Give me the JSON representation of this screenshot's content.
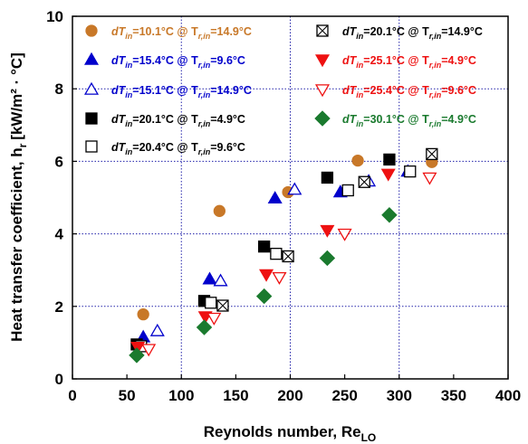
{
  "chart_data": {
    "type": "scatter",
    "xlabel": "Reynolds number, Re",
    "xlabel_sub": "LO",
    "ylabel": "Heat transfer coefficient, h",
    "ylabel_sub": "r",
    "ylabel_unit": "[kW/m² · °C]",
    "xlim": [
      0,
      400
    ],
    "ylim": [
      0,
      10
    ],
    "xticks": [
      0,
      50,
      100,
      150,
      200,
      250,
      300,
      350,
      400
    ],
    "yticks": [
      0,
      2,
      4,
      6,
      8,
      10
    ],
    "grid": true,
    "legend_position": "top (two columns inside plot)",
    "series": [
      {
        "name": "dT_in=10.1°C @ T_r,in=14.9°C",
        "legend_parts": [
          "dT",
          "in",
          "=10.1°C @ T",
          "r,in",
          "=14.9°C"
        ],
        "marker": "circle",
        "color": "#c87828",
        "filled": true,
        "points": [
          [
            65,
            1.78
          ],
          [
            135,
            4.63
          ],
          [
            198,
            5.15
          ],
          [
            262,
            6.02
          ],
          [
            330,
            5.98
          ]
        ]
      },
      {
        "name": "dT_in=15.4°C @ T_r,in=9.6°C",
        "legend_parts": [
          "dT",
          "in",
          "=15.4°C @ T",
          "r,in",
          "=9.6°C"
        ],
        "marker": "triangle-up",
        "color": "#0000cc",
        "filled": true,
        "points": [
          [
            65,
            1.15
          ],
          [
            126,
            2.75
          ],
          [
            186,
            4.98
          ],
          [
            246,
            5.15
          ],
          [
            308,
            5.72
          ]
        ]
      },
      {
        "name": "dT_in=15.1°C @ T_r,in=14.9°C",
        "legend_parts": [
          "dT",
          "in",
          "=15.1°C @ T",
          "r,in",
          "=14.9°C"
        ],
        "marker": "triangle-up",
        "color": "#0000cc",
        "filled": false,
        "points": [
          [
            78,
            1.32
          ],
          [
            136,
            2.7
          ],
          [
            204,
            5.22
          ],
          [
            272,
            5.45
          ]
        ]
      },
      {
        "name": "dT_in=20.1°C @ T_r,in=4.9°C",
        "legend_parts": [
          "dT",
          "in",
          "=20.1°C @ T",
          "r,in",
          "=4.9°C"
        ],
        "marker": "square",
        "color": "#000000",
        "filled": true,
        "points": [
          [
            59,
            0.95
          ],
          [
            121,
            2.15
          ],
          [
            176,
            3.65
          ],
          [
            234,
            5.55
          ],
          [
            291,
            6.05
          ]
        ]
      },
      {
        "name": "dT_in=20.4°C @ T_r,in=9.6°C",
        "legend_parts": [
          "dT",
          "in",
          "=20.4°C @ T",
          "r,in",
          "=9.6°C"
        ],
        "marker": "square",
        "color": "#000000",
        "filled": false,
        "points": [
          [
            63,
            0.9
          ],
          [
            127,
            2.1
          ],
          [
            187,
            3.45
          ],
          [
            253,
            5.2
          ],
          [
            310,
            5.72
          ]
        ]
      },
      {
        "name": "dT_in=20.1°C @ T_r,in=14.9°C",
        "legend_parts": [
          "dT",
          "in",
          "=20.1°C @ T",
          "r,in",
          "=14.9°C"
        ],
        "marker": "square-x",
        "color": "#000000",
        "filled": false,
        "points": [
          [
            138,
            2.02
          ],
          [
            198,
            3.38
          ],
          [
            268,
            5.43
          ],
          [
            330,
            6.2
          ]
        ]
      },
      {
        "name": "dT_in=25.1°C @ T_r,in=4.9°C",
        "legend_parts": [
          "dT",
          "in",
          "=25.1°C @ T",
          "r,in",
          "=4.9°C"
        ],
        "marker": "triangle-down",
        "color": "#ee1111",
        "filled": true,
        "points": [
          [
            60,
            0.88
          ],
          [
            122,
            1.72
          ],
          [
            178,
            2.88
          ],
          [
            234,
            4.1
          ],
          [
            290,
            5.65
          ]
        ]
      },
      {
        "name": "dT_in=25.4°C @ T_r,in=9.6°C",
        "legend_parts": [
          "dT",
          "in",
          "=25.4°C @ T",
          "r,in",
          "=9.6°C"
        ],
        "marker": "triangle-down",
        "color": "#ee1111",
        "filled": false,
        "points": [
          [
            70,
            0.82
          ],
          [
            130,
            1.68
          ],
          [
            190,
            2.8
          ],
          [
            250,
            4.0
          ],
          [
            328,
            5.55
          ]
        ]
      },
      {
        "name": "dT_in=30.1°C @ T_r,in=4.9°C",
        "legend_parts": [
          "dT",
          "in",
          "=30.1°C @ T",
          "r,in",
          "=4.9°C"
        ],
        "marker": "diamond",
        "color": "#1a7a2e",
        "filled": true,
        "points": [
          [
            59,
            0.65
          ],
          [
            121,
            1.42
          ],
          [
            176,
            2.28
          ],
          [
            234,
            3.33
          ],
          [
            291,
            4.52
          ]
        ]
      }
    ]
  }
}
